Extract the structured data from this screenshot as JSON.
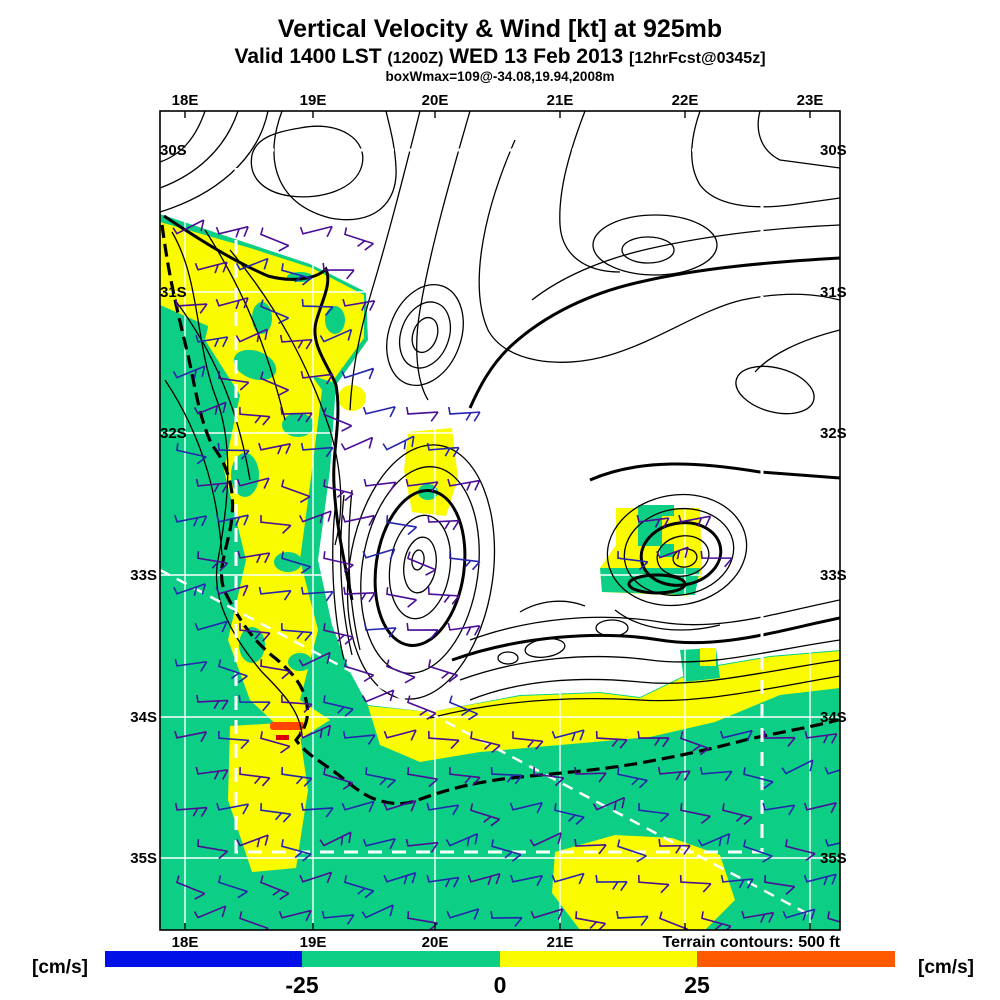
{
  "header": {
    "title": "Vertical Velocity & Wind [kt] at 925mb",
    "valid_prefix": "Valid 1400 LST ",
    "valid_zulu": "(1200Z)",
    "valid_mid": " WED 13 Feb 2013 ",
    "forecast_tag": "[12hrFcst@0345z]",
    "box_info": "boxWmax=109@-34.08,19.94,2008m"
  },
  "axes": {
    "top": [
      "18E",
      "19E",
      "20E",
      "21E",
      "22E",
      "23E"
    ],
    "bottom": [
      "18E",
      "19E",
      "20E",
      "21E"
    ],
    "left": [
      "30S",
      "31S",
      "32S",
      "33S",
      "34S",
      "35S"
    ],
    "right": [
      "30S",
      "31S",
      "32S",
      "33S",
      "34S",
      "35S"
    ]
  },
  "map": {
    "terrain_note": "Terrain contours: 500 ft"
  },
  "colorbar": {
    "units_left": "[cm/s]",
    "units_right": "[cm/s]",
    "ticks": [
      "-25",
      "0",
      "25"
    ],
    "segments": [
      {
        "name": "strong-sinking",
        "color": "#0010E6"
      },
      {
        "name": "weak-sinking",
        "color": "#0CCF85"
      },
      {
        "name": "weak-rising",
        "color": "#FBFB00"
      },
      {
        "name": "strong-rising",
        "color": "#FF5A00"
      }
    ]
  },
  "colors": {
    "fill_green": "#0CCF85",
    "fill_yellow": "#FBFB00",
    "barb_purple": "#4A0E96",
    "barb_blue": "#2525AE",
    "wmax_red": "#FF4500",
    "wmax_red2": "#DD0000",
    "grid_white": "#FFFFFF",
    "contour_black": "#000000"
  }
}
